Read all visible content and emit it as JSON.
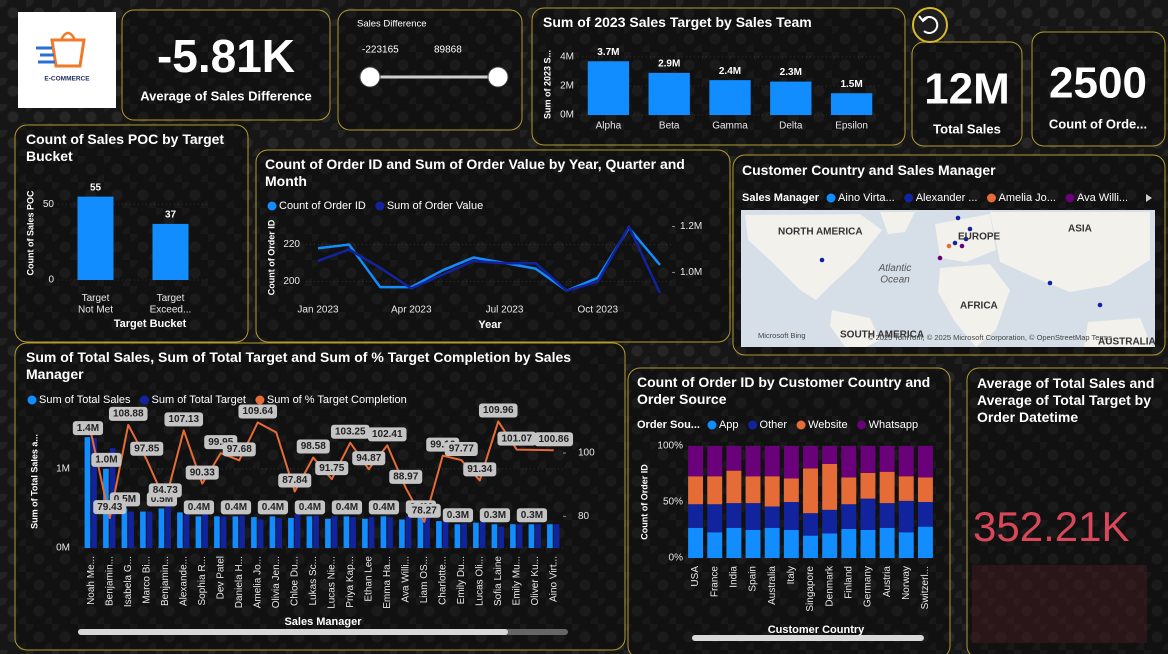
{
  "logo": {
    "text": "E-COMMERCE"
  },
  "cards": [
    {
      "value": "-5.81K",
      "label": "Average of Sales Difference"
    },
    {
      "value": "12M",
      "label": "Total Sales"
    },
    {
      "value": "2500",
      "label": "Count of Orde..."
    }
  ],
  "slicer": {
    "title": "Sales Difference",
    "min": -223165,
    "max": 89868
  },
  "time_card": {
    "title": "Average of Total Sales and Average of Total Target by Order Datetime",
    "value": "352.21K"
  },
  "map": {
    "title": "Customer Country and Sales Manager",
    "legend_title": "Sales Manager",
    "legend": [
      {
        "name": "Aino Virta...",
        "color": "#118DFF"
      },
      {
        "name": "Alexander ...",
        "color": "#12239E"
      },
      {
        "name": "Amelia Jo...",
        "color": "#E66C37"
      },
      {
        "name": "Ava Willi...",
        "color": "#6B007B"
      }
    ],
    "labels": [
      "NORTH AMERICA",
      "EUROPE",
      "ASIA",
      "Atlantic Ocean",
      "AFRICA",
      "SOUTH AMERICA",
      "AUSTRALIA"
    ],
    "provider": "Microsoft Bing",
    "attribution": "© 2025 TomTom, © 2025 Microsoft Corporation, © OpenStreetMap Terms"
  },
  "chart_data": [
    {
      "type": "bar",
      "title": "Sum of 2023 Sales Target by Sales Team",
      "y_label": "Sum of 2023 S...",
      "categories": [
        "Alpha",
        "Beta",
        "Gamma",
        "Delta",
        "Epsilon"
      ],
      "values": [
        3700000,
        2900000,
        2400000,
        2300000,
        1500000
      ],
      "value_labels": [
        "3.7M",
        "2.9M",
        "2.4M",
        "2.3M",
        "1.5M"
      ],
      "color": "#118DFF",
      "grid": true,
      "ylim": [
        0,
        4200000
      ],
      "yticks": [
        {
          "value": 0,
          "label": "0M"
        },
        {
          "value": 2000000,
          "label": "2M"
        },
        {
          "value": 4000000,
          "label": "4M"
        }
      ]
    },
    {
      "type": "bar",
      "title": "Count of Sales POC by Target Bucket",
      "y_label": "Count of Sales POC",
      "x_label": "Target Bucket",
      "categories": [
        "Target Not Met",
        "Target Exceed..."
      ],
      "values": [
        55,
        37
      ],
      "data_labels": true,
      "color": "#118DFF",
      "grid": true,
      "ylim": [
        0,
        62
      ],
      "yticks": [
        0,
        50
      ]
    },
    {
      "type": "line",
      "title": "Count of Order ID and Sum of Order Value by Year, Quarter and Month",
      "x_label": "Year",
      "y_label": "Count of Order ID",
      "categories": [
        "Jan 2023",
        null,
        null,
        "Apr 2023",
        null,
        null,
        "Jul 2023",
        null,
        null,
        "Oct 2023",
        null,
        null
      ],
      "series": [
        {
          "name": "Count of Order ID",
          "color": "#118DFF",
          "values": [
            218,
            220,
            197,
            197,
            206,
            213,
            210,
            207,
            195,
            202,
            229,
            209
          ]
        },
        {
          "name": "Sum of Order Value",
          "color": "#12239E",
          "axis": "y2",
          "values": [
            1050000,
            1100000,
            1020000,
            930000,
            990000,
            1050000,
            1040000,
            1040000,
            920000,
            960000,
            1200000,
            910000
          ]
        }
      ],
      "grid": true,
      "ylim": [
        190,
        236
      ],
      "yticks": [
        200,
        220
      ],
      "y2lim": [
        880000,
        1250000
      ],
      "y2ticks": [
        {
          "value": 1000000,
          "label": "1.0M"
        },
        {
          "value": 1200000,
          "label": "1.2M"
        }
      ]
    },
    {
      "type": "bar_line",
      "title": "Sum of Total Sales, Sum of Total Target and Sum of % Target Completion by Sales Manager",
      "x_label": "Sales Manager",
      "y_label": "Sum of Total Sales a...",
      "categories": [
        "Noah Me...",
        "Benjamin...",
        "Isabela G...",
        "Marco Bi...",
        "Benjamin...",
        "Alexande...",
        "Sophia R...",
        "Dev Patel",
        "Daniela H...",
        "Amelia Jo...",
        "Olivia Jen...",
        "Chloe Du...",
        "Lukas Sc...",
        "Lucas Nie...",
        "Priya Kap...",
        "Ethan Lee",
        "Emma Ha...",
        "Ava Willi...",
        "Liam OS...",
        "Charlotte...",
        "Emily Du...",
        "Lucas Oli...",
        "Sofia Laine",
        "Emily Mu...",
        "Oliver Ku...",
        "Aino Virt..."
      ],
      "series": [
        {
          "name": "Sum of Total Sales",
          "color": "#118DFF",
          "type": "bar",
          "values": [
            1400000,
            1000000,
            500000,
            460000,
            500000,
            450000,
            400000,
            400000,
            400000,
            390000,
            400000,
            380000,
            400000,
            370000,
            400000,
            370000,
            400000,
            360000,
            400000,
            340000,
            300000,
            320000,
            300000,
            300000,
            300000,
            300000
          ],
          "value_labels": [
            "1.4M",
            "1.0M",
            "0.5M",
            null,
            "0.5M",
            null,
            "0.4M",
            null,
            "0.4M",
            null,
            "0.4M",
            null,
            "0.4M",
            null,
            "0.4M",
            null,
            "0.4M",
            null,
            "0.4M",
            null,
            "0.3M",
            null,
            "0.3M",
            null,
            "0.3M",
            null
          ]
        },
        {
          "name": "Sum of Total Target",
          "color": "#12239E",
          "type": "bar",
          "values": [
            1390000,
            1260000,
            460000,
            460000,
            590000,
            420000,
            440000,
            400000,
            410000,
            360000,
            380000,
            430000,
            410000,
            400000,
            390000,
            390000,
            390000,
            400000,
            510000,
            340000,
            310000,
            330000,
            270000,
            300000,
            300000,
            300000
          ]
        },
        {
          "name": "Sum of % Target Completion",
          "color": "#E66C37",
          "type": "line",
          "axis": "y2",
          "values": [
            106,
            79.43,
            108.88,
            97.85,
            84.73,
            107.13,
            90.33,
            99.95,
            97.68,
            109.64,
            106.5,
            87.84,
            98.58,
            91.75,
            103.25,
            94.87,
            102.41,
            88.97,
            78.27,
            99.16,
            97.77,
            91.34,
            109.96,
            101.07,
            101,
            100.86
          ],
          "value_labels": [
            null,
            "79.43",
            "108.88",
            "97.85",
            "84.73",
            "107.13",
            "90.33",
            "99.95",
            "97.68",
            "109.64",
            null,
            "87.84",
            "98.58",
            "91.75",
            "103.25",
            "94.87",
            "102.41",
            "88.97",
            "78.27",
            "99.16",
            "97.77",
            "91.34",
            "109.96",
            "101.07",
            null,
            "100.86"
          ]
        }
      ],
      "grid": true,
      "ylim": [
        0,
        1680000
      ],
      "yticks": [
        {
          "value": 0,
          "label": "0M"
        },
        {
          "value": 1000000,
          "label": "1M"
        }
      ],
      "y2lim": [
        70,
        112
      ],
      "y2ticks": [
        80,
        100
      ]
    },
    {
      "type": "stacked_bar",
      "title": "Count of Order ID by Customer Country and Order Source",
      "legend_title": "Order Sou...",
      "x_label": "Customer Country",
      "y_label": "Count of Order ID",
      "categories": [
        "USA",
        "France",
        "India",
        "Spain",
        "Australia",
        "Italy",
        "Singapore",
        "Denmark",
        "Finland",
        "Germany",
        "Austria",
        "Norway",
        "Switzerl..."
      ],
      "series": [
        {
          "name": "App",
          "color": "#118DFF",
          "values": [
            27,
            23,
            27,
            25,
            27,
            25,
            20,
            22,
            26,
            25,
            27,
            23,
            28
          ]
        },
        {
          "name": "Other",
          "color": "#12239E",
          "values": [
            21,
            25,
            22,
            24,
            19,
            25,
            20,
            21,
            22,
            28,
            22,
            28,
            22
          ]
        },
        {
          "name": "Website",
          "color": "#E66C37",
          "values": [
            25,
            25,
            29,
            24,
            27,
            21,
            40,
            41,
            24,
            23,
            28,
            22,
            22
          ]
        },
        {
          "name": "Whatsapp",
          "color": "#6B007B",
          "values": [
            27,
            27,
            22,
            27,
            27,
            29,
            20,
            16,
            28,
            24,
            23,
            27,
            28
          ]
        }
      ],
      "grid": true,
      "ylim": [
        0,
        100
      ],
      "yticks": [
        {
          "value": 0,
          "label": "0%"
        },
        {
          "value": 50,
          "label": "50%"
        },
        {
          "value": 100,
          "label": "100%"
        }
      ]
    }
  ]
}
